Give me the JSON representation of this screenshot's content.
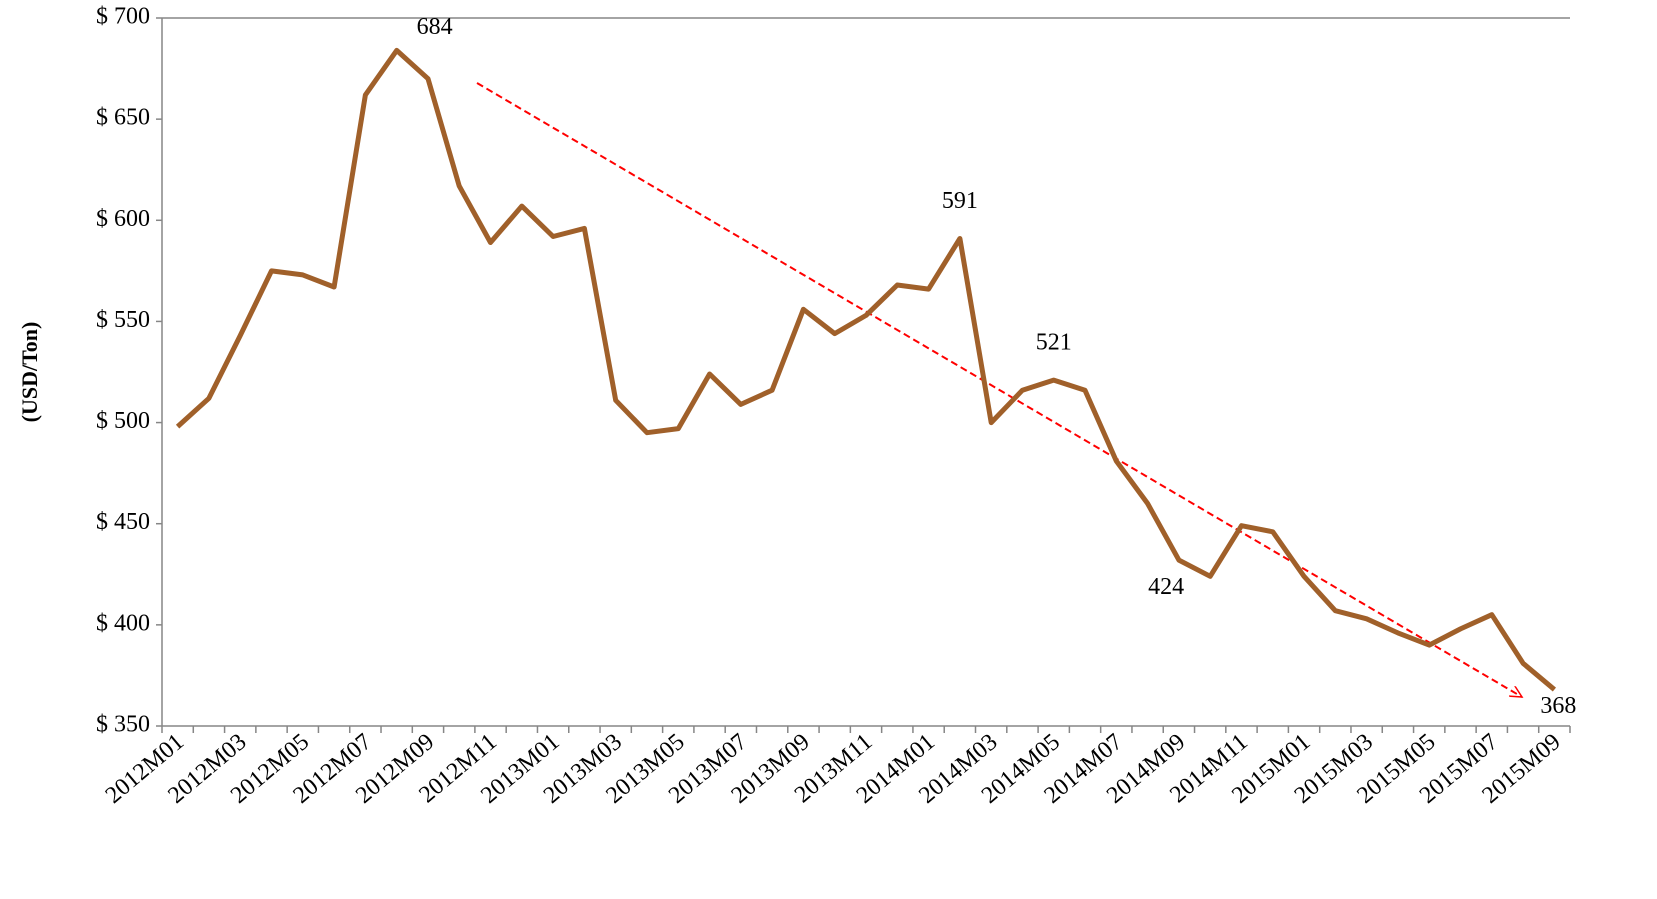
{
  "chart_data": {
    "type": "line",
    "y_label": "(USD/Ton)",
    "categories": [
      "2012M01",
      null,
      "2012M03",
      null,
      "2012M05",
      null,
      "2012M07",
      null,
      "2012M09",
      null,
      "2012M11",
      null,
      "2013M01",
      null,
      "2013M03",
      null,
      "2013M05",
      null,
      "2013M07",
      null,
      "2013M09",
      null,
      "2013M11",
      null,
      "2014M01",
      null,
      "2014M03",
      null,
      "2014M05",
      null,
      "2014M07",
      null,
      "2014M09",
      null,
      "2014M11",
      null,
      "2015M01",
      null,
      "2015M03",
      null,
      "2015M05",
      null,
      "2015M07",
      null,
      "2015M09"
    ],
    "series": [
      {
        "color": "#a0602a",
        "values": [
          498,
          512,
          543,
          575,
          573,
          567,
          662,
          684,
          670,
          617,
          589,
          607,
          592,
          596,
          511,
          495,
          497,
          524,
          509,
          516,
          556,
          544,
          553,
          568,
          566,
          591,
          500,
          516,
          521,
          516,
          481,
          460,
          432,
          424,
          449,
          446,
          424,
          407,
          403,
          396,
          390,
          398,
          405,
          381,
          368
        ],
        "value_labels": [
          null,
          null,
          null,
          null,
          null,
          null,
          null,
          "684",
          null,
          null,
          null,
          null,
          null,
          null,
          null,
          null,
          null,
          null,
          null,
          null,
          null,
          null,
          null,
          null,
          null,
          "591",
          null,
          null,
          "521",
          null,
          null,
          null,
          null,
          "424",
          null,
          null,
          null,
          null,
          null,
          null,
          null,
          null,
          null,
          null,
          "368"
        ]
      }
    ],
    "ylim": [
      350,
      700
    ],
    "yticks": [
      {
        "value": 350,
        "label": "$ 350"
      },
      {
        "value": 400,
        "label": "$ 400"
      },
      {
        "value": 450,
        "label": "$ 450"
      },
      {
        "value": 500,
        "label": "$ 500"
      },
      {
        "value": 550,
        "label": "$ 550"
      },
      {
        "value": 600,
        "label": "$ 600"
      },
      {
        "value": 650,
        "label": "$ 650"
      },
      {
        "value": 700,
        "label": "$ 700"
      }
    ]
  }
}
